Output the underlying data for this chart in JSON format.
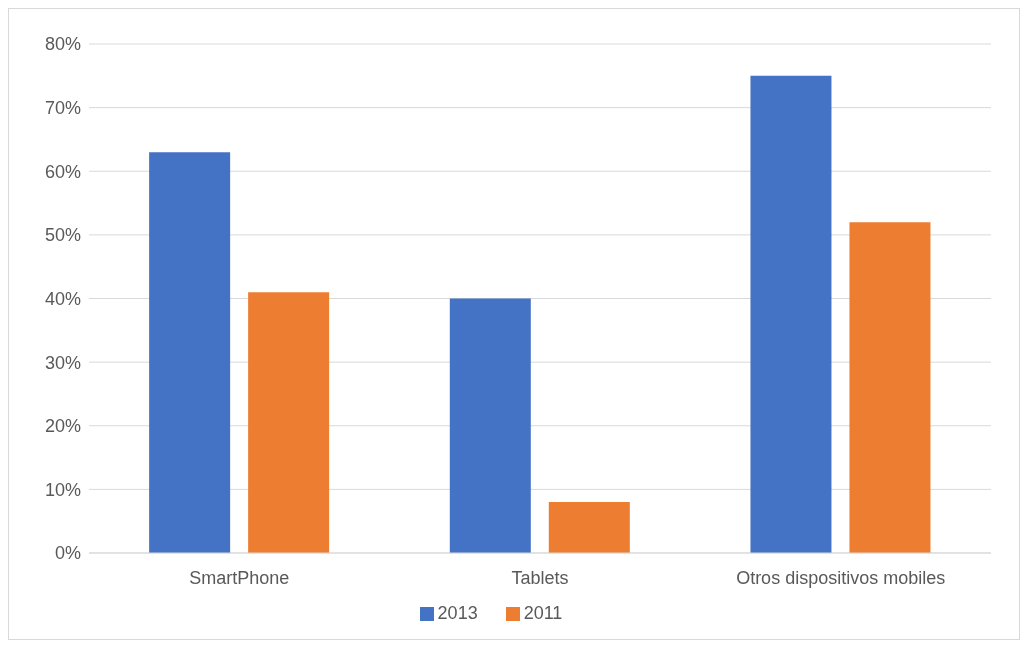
{
  "chart_data": {
    "type": "bar",
    "categories": [
      "SmartPhone",
      "Tablets",
      "Otros dispositivos mobiles"
    ],
    "series": [
      {
        "name": "2013",
        "color": "#4472c4",
        "values": [
          63,
          40,
          75
        ]
      },
      {
        "name": "2011",
        "color": "#ed7d31",
        "values": [
          41,
          8,
          52
        ]
      }
    ],
    "ylim": [
      0,
      80
    ],
    "yticks": [
      {
        "value": 0,
        "label": "0%"
      },
      {
        "value": 10,
        "label": "10%"
      },
      {
        "value": 20,
        "label": "20%"
      },
      {
        "value": 30,
        "label": "30%"
      },
      {
        "value": 40,
        "label": "40%"
      },
      {
        "value": 50,
        "label": "50%"
      },
      {
        "value": 60,
        "label": "60%"
      },
      {
        "value": 70,
        "label": "70%"
      },
      {
        "value": 80,
        "label": "80%"
      }
    ],
    "grid": "y",
    "legend": "bottom"
  }
}
